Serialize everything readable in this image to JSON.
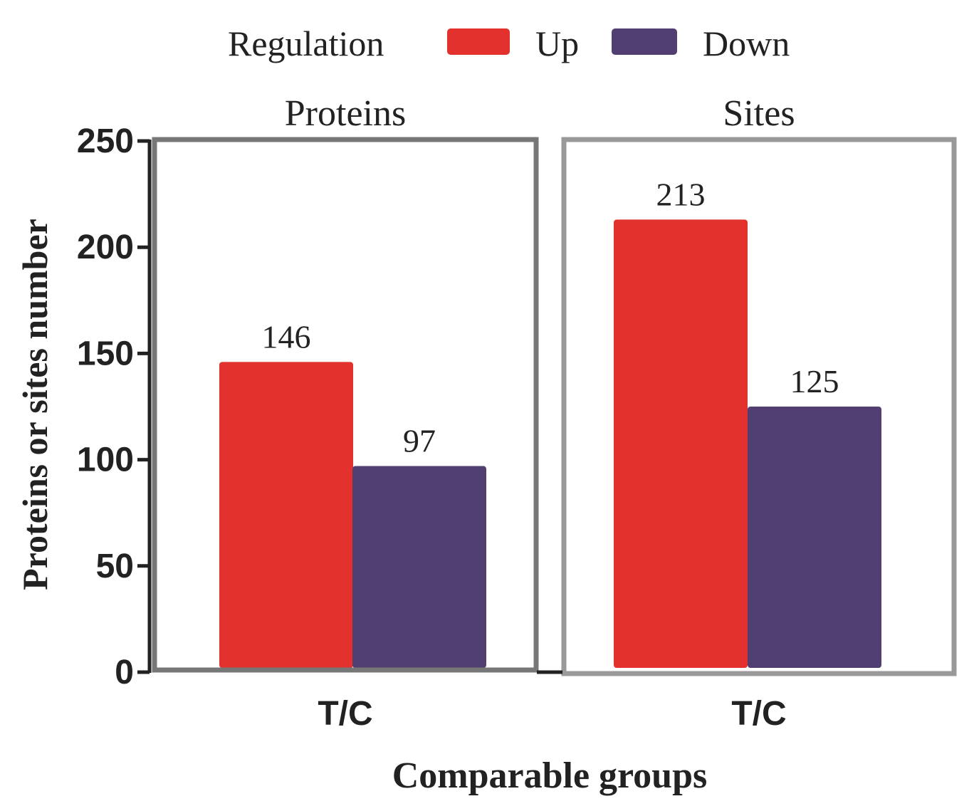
{
  "chart_data": {
    "type": "bar",
    "legend": {
      "title": "Regulation",
      "position": "top",
      "entries": [
        {
          "label": "Up",
          "color": "#E3312E"
        },
        {
          "label": "Down",
          "color": "#523F72"
        }
      ]
    },
    "ylabel": "Proteins or sites number",
    "xlabel": "Comparable groups",
    "ylim": [
      0,
      250
    ],
    "yticks": [
      "0",
      "50",
      "100",
      "150",
      "200",
      "250"
    ],
    "ytick_values": [
      0,
      50,
      100,
      150,
      200,
      250
    ],
    "panels": [
      {
        "title": "Proteins",
        "category": "T/C",
        "series": [
          {
            "name": "Up",
            "value": 146,
            "label": "146"
          },
          {
            "name": "Down",
            "value": 97,
            "label": "97"
          }
        ]
      },
      {
        "title": "Sites",
        "category": "T/C",
        "series": [
          {
            "name": "Up",
            "value": 213,
            "label": "213"
          },
          {
            "name": "Down",
            "value": 125,
            "label": "125"
          }
        ]
      }
    ]
  }
}
